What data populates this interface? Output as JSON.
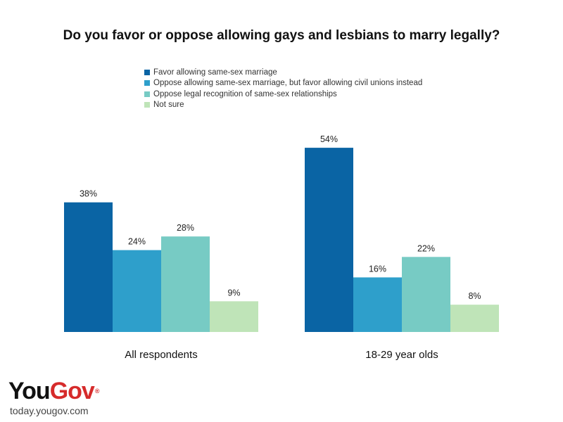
{
  "chart_data": {
    "type": "bar",
    "title": "Do you favor or oppose allowing gays and lesbians to marry legally?",
    "categories": [
      "All respondents",
      "18-29 year olds"
    ],
    "series": [
      {
        "name": "Favor allowing same-sex marriage",
        "values": [
          38,
          54
        ],
        "labels": [
          "38%",
          "54%"
        ],
        "color": "#0a64a4"
      },
      {
        "name": "Oppose allowing same-sex marriage, but favor allowing civil unions instead",
        "values": [
          24,
          16
        ],
        "labels": [
          "24%",
          "16%"
        ],
        "color": "#2e9fcb"
      },
      {
        "name": "Oppose legal recognition of same-sex relationships",
        "values": [
          28,
          22
        ],
        "labels": [
          "28%",
          "22%"
        ],
        "color": "#77cbc4"
      },
      {
        "name": "Not sure",
        "values": [
          9,
          8
        ],
        "labels": [
          "9%",
          "8%"
        ],
        "color": "#bfe4b8"
      }
    ],
    "ylim": [
      0,
      60
    ],
    "xlabel": "",
    "ylabel": "",
    "grid": false,
    "legend_position": "top-left"
  },
  "branding": {
    "logo_you": "You",
    "logo_gov": "Gov",
    "logo_mark": "®",
    "url": "today.yougov.com",
    "you_color": "#111111",
    "gov_color": "#d62b2b"
  }
}
